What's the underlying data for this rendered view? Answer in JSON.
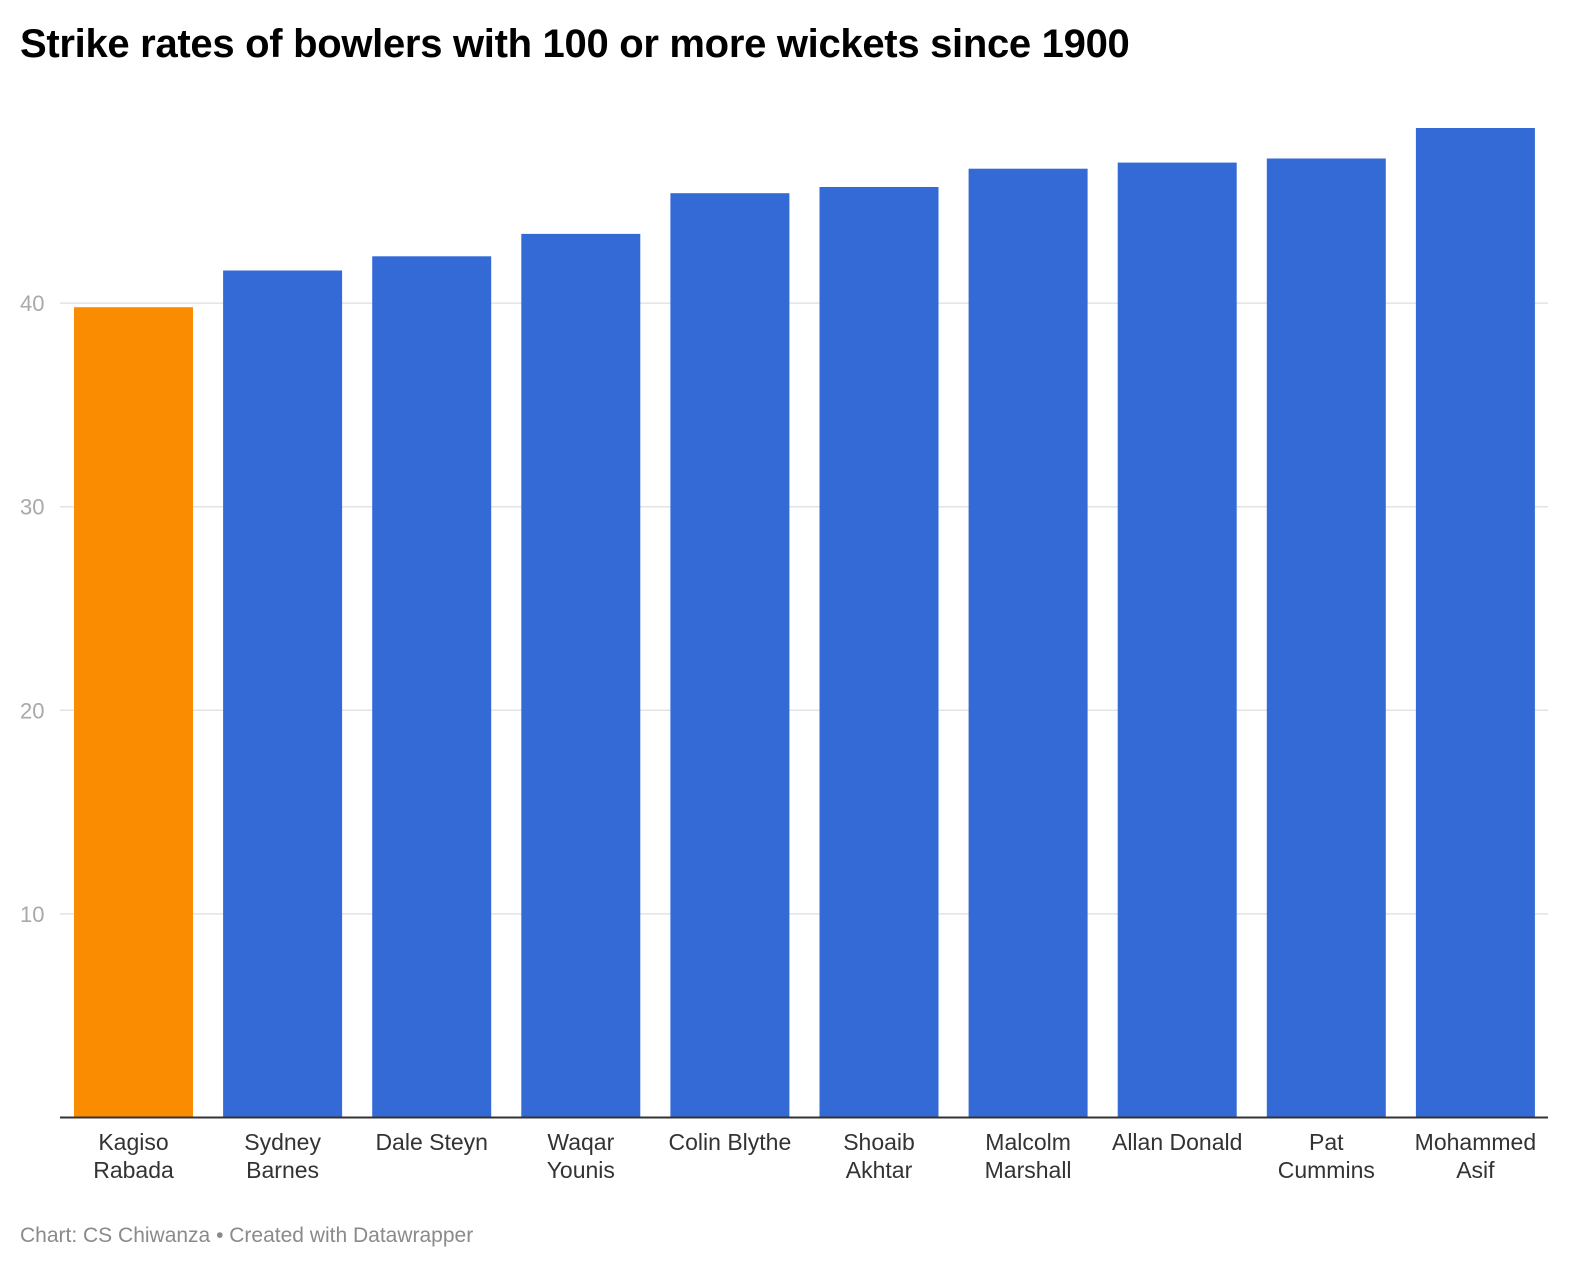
{
  "chart_data": {
    "type": "bar",
    "title": "Strike rates of bowlers with 100 or more wickets since 1900",
    "categories": [
      [
        "Kagiso",
        "Rabada"
      ],
      [
        "Sydney",
        "Barnes"
      ],
      [
        "Dale Steyn"
      ],
      [
        "Waqar",
        "Younis"
      ],
      [
        "Colin Blythe"
      ],
      [
        "Shoaib",
        "Akhtar"
      ],
      [
        "Malcolm",
        "Marshall"
      ],
      [
        "Allan Donald"
      ],
      [
        "Pat",
        "Cummins"
      ],
      [
        "Mohammed",
        "Asif"
      ]
    ],
    "values": [
      39.8,
      41.6,
      42.3,
      43.4,
      45.4,
      45.7,
      46.6,
      46.9,
      47.1,
      48.6
    ],
    "highlight_index": 0,
    "ylim": [
      0,
      50
    ],
    "yticks": [
      10,
      20,
      30,
      40
    ],
    "grid": true,
    "xlabel": "",
    "ylabel": ""
  },
  "colors": {
    "highlight": "#f98c00",
    "bar": "#346ad6",
    "grid": "#e3e3e3",
    "axis": "#333333"
  },
  "footer": {
    "text": "Chart: CS Chiwanza • Created with Datawrapper"
  }
}
